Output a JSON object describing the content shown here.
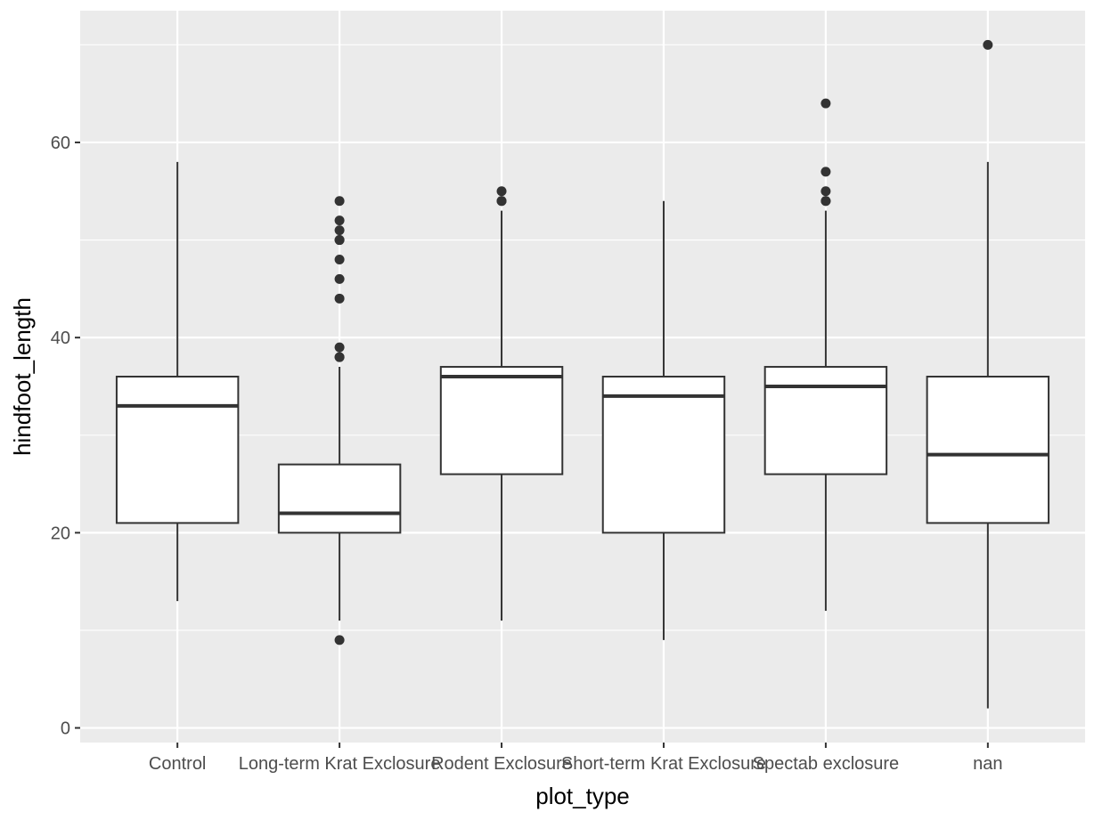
{
  "chart_data": {
    "type": "boxplot",
    "xlabel": "plot_type",
    "ylabel": "hindfoot_length",
    "ylim": [
      -1.5,
      73.5
    ],
    "yticks": [
      0,
      20,
      40,
      60
    ],
    "grid": true,
    "categories": [
      "Control",
      "Long-term Krat Exclosure",
      "Rodent Exclosure",
      "Short-term Krat Exclosure",
      "Spectab exclosure",
      "nan"
    ],
    "boxes": [
      {
        "category": "Control",
        "whisker_low": 13,
        "q1": 21,
        "median": 33,
        "q3": 36,
        "whisker_high": 58,
        "outliers": []
      },
      {
        "category": "Long-term Krat Exclosure",
        "whisker_low": 11,
        "q1": 20,
        "median": 22,
        "q3": 27,
        "whisker_high": 37,
        "outliers": [
          9,
          38,
          38,
          39,
          44,
          46,
          48,
          50,
          50,
          51,
          52,
          54
        ]
      },
      {
        "category": "Rodent Exclosure",
        "whisker_low": 11,
        "q1": 26,
        "median": 36,
        "q3": 37,
        "whisker_high": 53,
        "outliers": [
          54,
          54,
          55
        ]
      },
      {
        "category": "Short-term Krat Exclosure",
        "whisker_low": 9,
        "q1": 20,
        "median": 34,
        "q3": 36,
        "whisker_high": 54,
        "outliers": []
      },
      {
        "category": "Spectab exclosure",
        "whisker_low": 12,
        "q1": 26,
        "median": 35,
        "q3": 37,
        "whisker_high": 53,
        "outliers": [
          54,
          54,
          55,
          57,
          64
        ]
      },
      {
        "category": "nan",
        "whisker_low": 2,
        "q1": 21,
        "median": 28,
        "q3": 36,
        "whisker_high": 58,
        "outliers": [
          70
        ]
      }
    ]
  },
  "colors": {
    "panel_background": "#ebebeb",
    "grid": "#ffffff",
    "box_line": "#333333",
    "box_fill": "#ffffff",
    "outlier": "#333333",
    "tick_text": "#4d4d4d",
    "title_text": "#000000"
  }
}
